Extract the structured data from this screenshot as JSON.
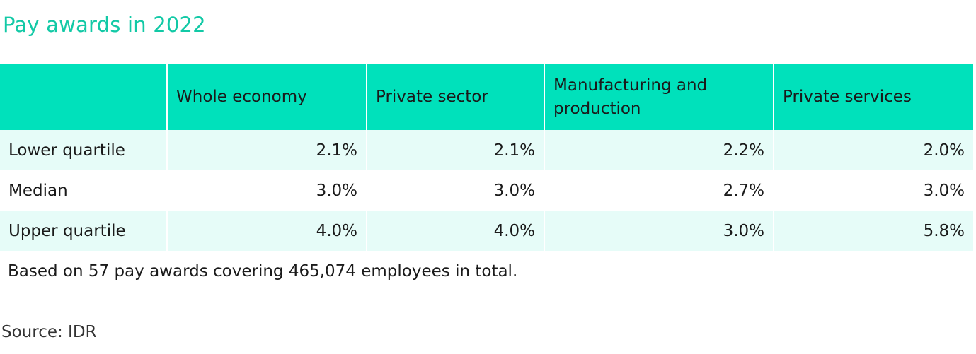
{
  "title": "Pay awards in 2022",
  "table": {
    "columns": [
      "",
      "Whole economy",
      "Private sector",
      "Manufacturing and production",
      "Private services"
    ],
    "rows": [
      {
        "label": "Lower quartile",
        "values": [
          "2.1%",
          "2.1%",
          "2.2%",
          "2.0%"
        ]
      },
      {
        "label": "Median",
        "values": [
          "3.0%",
          "3.0%",
          "2.7%",
          "3.0%"
        ]
      },
      {
        "label": "Upper quartile",
        "values": [
          "4.0%",
          "4.0%",
          "3.0%",
          "5.8%"
        ]
      }
    ]
  },
  "note": "Based on 57 pay awards covering 465,074 employees in total.",
  "source": "Source: IDR",
  "colors": {
    "title": "#12c9a6",
    "header_bg": "#00e1bb",
    "row_tint": "#e6fcf8"
  }
}
